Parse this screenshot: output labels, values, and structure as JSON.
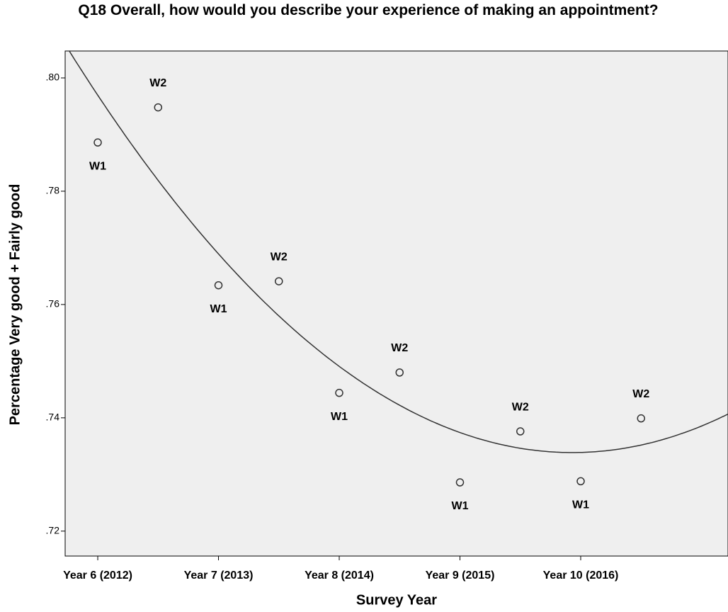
{
  "chart_data": {
    "type": "scatter",
    "title": "Q18 Overall, how would you describe your experience of making an appointment?",
    "x_label": "Survey Year",
    "y_label": "Percentage Very good + Fairly good",
    "x": [
      6,
      6.5,
      7,
      7.5,
      8,
      8.5,
      9,
      9.5,
      10,
      10.5
    ],
    "values": [
      0.7886,
      0.7948,
      0.7634,
      0.7641,
      0.7444,
      0.748,
      0.7286,
      0.7376,
      0.7288,
      0.7399
    ],
    "point_labels": [
      "W1",
      "W2",
      "W1",
      "W2",
      "W1",
      "W2",
      "W1",
      "W2",
      "W1",
      "W2"
    ],
    "fit": "quadratic",
    "color": "#333333",
    "xlim": [
      5.73,
      11.22
    ],
    "ylim": [
      0.7156,
      0.80475
    ],
    "xticks": [
      {
        "value": 6,
        "label": "Year 6 (2012)"
      },
      {
        "value": 7,
        "label": "Year 7 (2013)"
      },
      {
        "value": 8,
        "label": "Year 8 (2014)"
      },
      {
        "value": 9,
        "label": "Year 9 (2015)"
      },
      {
        "value": 10,
        "label": "Year 10 (2016)"
      }
    ],
    "yticks": [
      {
        "value": 0.72,
        "label": ".72"
      },
      {
        "value": 0.74,
        "label": ".74"
      },
      {
        "value": 0.76,
        "label": ".76"
      },
      {
        "value": 0.78,
        "label": ".78"
      },
      {
        "value": 0.8,
        "label": ".80"
      }
    ]
  }
}
